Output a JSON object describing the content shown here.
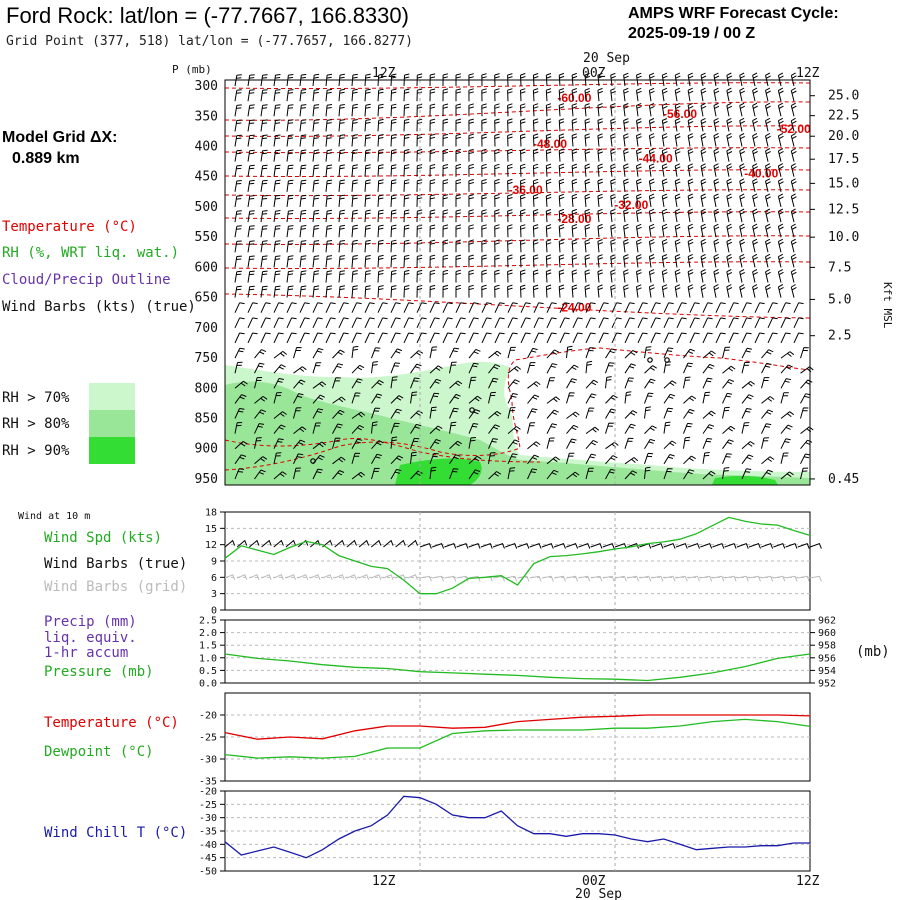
{
  "header": {
    "title": "Ford Rock:  lat/lon = (-77.7667, 166.8330)",
    "grid_point": "Grid Point (377, 518) lat/lon = (-77.7657, 166.8277)",
    "cycle_line1": "AMPS WRF Forecast Cycle:",
    "cycle_line2": "2025-09-19 / 00  Z"
  },
  "model_grid": {
    "label": "Model Grid ΔX:",
    "value": "0.889 km"
  },
  "legend": {
    "temperature": "Temperature (°C)",
    "rh": "RH (%, WRT liq. wat.)",
    "cloud": "Cloud/Precip Outline",
    "wind": "Wind Barbs (kts) (true)",
    "rh70": "RH > 70%",
    "rh80": "RH > 80%",
    "rh90": "RH > 90%"
  },
  "colors": {
    "temperature": "#e00000",
    "rh70": "#ccf6cc",
    "rh80": "#99e699",
    "rh90": "#33dd33",
    "wind_speed": "#22bb22",
    "pressure": "#22bb22",
    "dewpoint": "#22bb22",
    "wind_chill": "#1a1aaa",
    "precip_label": "#6633aa",
    "grid_barb": "#bbbbbb"
  },
  "time_axis": {
    "date_label": "20 Sep",
    "ticks": [
      "12Z",
      "00Z",
      "12Z"
    ]
  },
  "chart_data": [
    {
      "type": "contour",
      "panel": "sounding",
      "ylabel": "P (mb)",
      "y2label": "Kft MSL",
      "pressure_levels": [
        300,
        350,
        400,
        450,
        500,
        550,
        600,
        650,
        700,
        750,
        800,
        850,
        900,
        950
      ],
      "height_ticks": [
        {
          "kft": "25.0",
          "p": 316
        },
        {
          "kft": "22.5",
          "p": 349
        },
        {
          "kft": "20.0",
          "p": 383
        },
        {
          "kft": "17.5",
          "p": 421
        },
        {
          "kft": "15.0",
          "p": 461
        },
        {
          "kft": "12.5",
          "p": 504
        },
        {
          "kft": "10.0",
          "p": 550
        },
        {
          "kft": "7.5",
          "p": 600
        },
        {
          "kft": "5.0",
          "p": 653
        },
        {
          "kft": "2.5",
          "p": 713
        },
        {
          "kft": "0.45",
          "p": 950
        }
      ],
      "temperature_contour_labels": [
        {
          "label": "-60.00",
          "hour": 21.5,
          "p": 320
        },
        {
          "label": "-56.00",
          "hour": 28.0,
          "p": 346
        },
        {
          "label": "-52.00",
          "hour": 35.0,
          "p": 371
        },
        {
          "label": "-48.00",
          "hour": 20.0,
          "p": 396
        },
        {
          "label": "-44.00",
          "hour": 26.5,
          "p": 420
        },
        {
          "label": "-40.00",
          "hour": 33.0,
          "p": 445
        },
        {
          "label": "-36.00",
          "hour": 18.5,
          "p": 472
        },
        {
          "label": "-32.00",
          "hour": 25.0,
          "p": 497
        },
        {
          "label": "-28.00",
          "hour": 21.5,
          "p": 520
        },
        {
          "label": "-24.00",
          "hour": 21.5,
          "p": 666
        }
      ]
    },
    {
      "type": "line",
      "panel": "wind10m",
      "title": "Wind at 10 m",
      "labels": {
        "speed": "Wind Spd (kts)",
        "barbs_true": "Wind Barbs (true)",
        "barbs_grid": "Wind Barbs (grid)"
      },
      "ylim": [
        0,
        18
      ],
      "yticks": [
        0,
        3,
        6,
        9,
        12,
        15,
        18
      ],
      "x_hours": [
        0,
        1,
        2,
        3,
        4,
        5,
        6,
        7,
        8,
        9,
        10,
        11,
        12,
        13,
        14,
        15,
        16,
        17,
        18,
        19,
        20,
        21,
        22,
        23,
        24,
        25,
        26,
        27,
        28,
        29,
        30,
        31,
        32,
        33,
        34,
        35,
        36
      ],
      "values": [
        9.5,
        11.8,
        11,
        10.2,
        11.5,
        12.6,
        12,
        10,
        9,
        8,
        7.6,
        5.5,
        3,
        3,
        4,
        5.8,
        6,
        6.3,
        4.6,
        8.5,
        9.8,
        10,
        10.3,
        10.7,
        11.2,
        11.6,
        12.2,
        12.5,
        13,
        14,
        15.5,
        17,
        16.3,
        15.8,
        15.6,
        14.6,
        13.7
      ]
    },
    {
      "type": "line",
      "panel": "precip_pressure",
      "labels": {
        "precip": "Precip (mm)",
        "liq": "liq. equiv.",
        "accum": "1-hr accum",
        "pressure": "Pressure (mb)"
      },
      "ylabel_right": "(mb)",
      "ylim": [
        0,
        2.5
      ],
      "yticks": [
        0.0,
        0.5,
        1.0,
        1.5,
        2.0,
        2.5
      ],
      "y2lim": [
        952,
        962
      ],
      "y2ticks": [
        952,
        954,
        956,
        958,
        960,
        962
      ],
      "x_hours": [
        0,
        2,
        4,
        6,
        8,
        10,
        12,
        14,
        16,
        18,
        20,
        22,
        24,
        26,
        28,
        30,
        32,
        34,
        36
      ],
      "precip_values": [
        0,
        0,
        0,
        0,
        0,
        0,
        0,
        0,
        0,
        0,
        0,
        0,
        0,
        0,
        0,
        0,
        0,
        0,
        0
      ],
      "pressure_values": [
        956.6,
        955.9,
        955.5,
        954.9,
        954.5,
        954.3,
        953.8,
        953.6,
        953.4,
        953.2,
        952.9,
        952.7,
        952.6,
        952.4,
        952.9,
        953.6,
        954.6,
        955.9,
        956.6
      ]
    },
    {
      "type": "line",
      "panel": "temp_dewpoint",
      "labels": {
        "temperature": "Temperature (°C)",
        "dewpoint": "Dewpoint (°C)"
      },
      "ylim": [
        -35,
        -15
      ],
      "yticks": [
        -35,
        -30,
        -25,
        -20
      ],
      "x_hours": [
        0,
        2,
        4,
        6,
        8,
        10,
        12,
        14,
        16,
        18,
        20,
        22,
        24,
        26,
        28,
        30,
        32,
        34,
        36
      ],
      "series": [
        {
          "name": "Temperature",
          "values": [
            -24,
            -25.5,
            -25,
            -25.4,
            -23.6,
            -22.5,
            -22.5,
            -23,
            -22.8,
            -21.5,
            -21,
            -20.5,
            -20.3,
            -20,
            -20,
            -20,
            -20,
            -20,
            -20.2
          ]
        },
        {
          "name": "Dewpoint",
          "values": [
            -29,
            -29.8,
            -29.5,
            -29.8,
            -29.4,
            -27.5,
            -27.5,
            -24.2,
            -23.6,
            -23.4,
            -23.4,
            -23.4,
            -23,
            -23,
            -22.5,
            -21.5,
            -21,
            -21.5,
            -22.6
          ]
        }
      ]
    },
    {
      "type": "line",
      "panel": "wind_chill",
      "labels": {
        "wind_chill": "Wind Chill T (°C)"
      },
      "ylim": [
        -50,
        -20
      ],
      "yticks": [
        -50,
        -45,
        -40,
        -35,
        -30,
        -25,
        -20
      ],
      "x_hours": [
        0,
        1,
        2,
        3,
        4,
        5,
        6,
        7,
        8,
        9,
        10,
        11,
        12,
        13,
        14,
        15,
        16,
        17,
        18,
        19,
        20,
        21,
        22,
        23,
        24,
        25,
        26,
        27,
        28,
        29,
        30,
        31,
        32,
        33,
        34,
        35,
        36
      ],
      "values": [
        -39,
        -44,
        -42.5,
        -41,
        -43,
        -45,
        -42,
        -38,
        -35,
        -33,
        -29,
        -22,
        -22.5,
        -25,
        -29,
        -30,
        -30,
        -27.5,
        -33,
        -36,
        -36,
        -37,
        -36,
        -36,
        -36.5,
        -38,
        -39,
        -38,
        -40,
        -42,
        -41.5,
        -41,
        -41,
        -40.5,
        -40.5,
        -39.5,
        -39.5
      ]
    }
  ]
}
